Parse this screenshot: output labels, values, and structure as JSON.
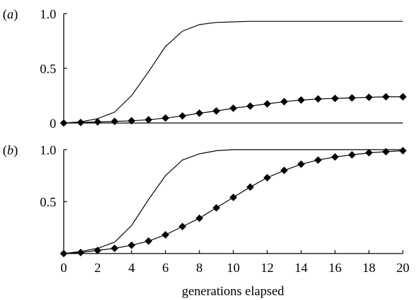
{
  "chart_data": [
    {
      "type": "line",
      "panel": "a",
      "panel_label": "a",
      "xlim": [
        0,
        20
      ],
      "ylim": [
        0,
        1.0
      ],
      "yticks": [
        "0",
        "0.5",
        "1.0"
      ],
      "grid": false,
      "legend": "none",
      "series": [
        {
          "marker": "none",
          "color": "#000000",
          "x": [
            0,
            1,
            2,
            3,
            4,
            5,
            6,
            7,
            8,
            9,
            10,
            11,
            12,
            13,
            14,
            15,
            16,
            17,
            18,
            19,
            20
          ],
          "values": [
            0,
            0.01,
            0.04,
            0.1,
            0.25,
            0.47,
            0.7,
            0.84,
            0.9,
            0.92,
            0.925,
            0.93,
            0.93,
            0.93,
            0.93,
            0.93,
            0.93,
            0.93,
            0.93,
            0.93,
            0.93
          ]
        },
        {
          "marker": "diamond",
          "color": "#000000",
          "x": [
            0,
            1,
            2,
            3,
            4,
            5,
            6,
            7,
            8,
            9,
            10,
            11,
            12,
            13,
            14,
            15,
            16,
            17,
            18,
            19,
            20
          ],
          "values": [
            0,
            0.005,
            0.01,
            0.015,
            0.02,
            0.03,
            0.045,
            0.065,
            0.09,
            0.11,
            0.135,
            0.155,
            0.175,
            0.195,
            0.21,
            0.22,
            0.225,
            0.23,
            0.235,
            0.24,
            0.24
          ]
        }
      ]
    },
    {
      "type": "line",
      "panel": "b",
      "panel_label": "b",
      "xlim": [
        0,
        20
      ],
      "ylim": [
        0,
        1.0
      ],
      "yticks": [
        "0.5",
        "1.0"
      ],
      "xticks": [
        "0",
        "2",
        "4",
        "6",
        "8",
        "10",
        "12",
        "14",
        "16",
        "18",
        "20"
      ],
      "xlabel": "generations elapsed",
      "grid": false,
      "legend": "none",
      "series": [
        {
          "marker": "none",
          "color": "#000000",
          "x": [
            0,
            1,
            2,
            3,
            4,
            5,
            6,
            7,
            8,
            9,
            10,
            11,
            12,
            13,
            14,
            15,
            16,
            17,
            18,
            19,
            20
          ],
          "values": [
            0,
            0.02,
            0.05,
            0.11,
            0.27,
            0.52,
            0.75,
            0.9,
            0.96,
            0.99,
            1.0,
            1.0,
            1.0,
            1.0,
            1.0,
            1.0,
            1.0,
            1.0,
            1.0,
            1.0,
            1.0
          ]
        },
        {
          "marker": "diamond",
          "color": "#000000",
          "x": [
            0,
            1,
            2,
            3,
            4,
            5,
            6,
            7,
            8,
            9,
            10,
            11,
            12,
            13,
            14,
            15,
            16,
            17,
            18,
            19,
            20
          ],
          "values": [
            0,
            0.01,
            0.03,
            0.05,
            0.08,
            0.12,
            0.18,
            0.26,
            0.34,
            0.44,
            0.54,
            0.64,
            0.73,
            0.8,
            0.86,
            0.9,
            0.93,
            0.95,
            0.97,
            0.98,
            0.99
          ]
        }
      ]
    }
  ]
}
